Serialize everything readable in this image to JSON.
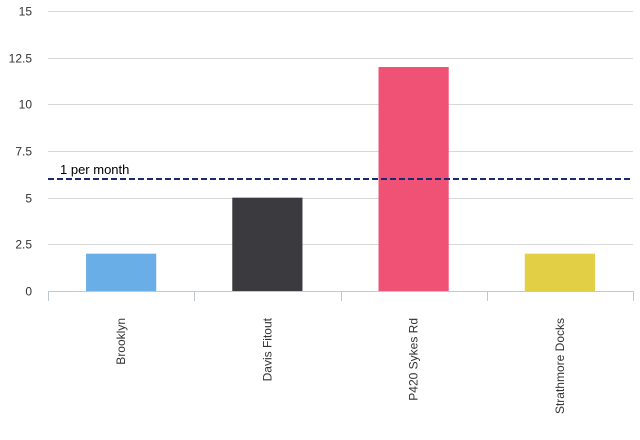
{
  "chart_data": {
    "type": "bar",
    "categories": [
      "Brooklyn",
      "Davis Fitout",
      "P420 Sykes Rd",
      "Strathmore Docks"
    ],
    "values": [
      2,
      5,
      12,
      2
    ],
    "bar_colors": [
      "#6aaee8",
      "#3b3b3f",
      "#ef5275",
      "#e2cf46"
    ],
    "ylim": [
      0,
      15
    ],
    "yticks": [
      0,
      2.5,
      5,
      7.5,
      10,
      12.5,
      15
    ],
    "ytick_labels": [
      "0",
      "2.5",
      "5",
      "7.5",
      "10",
      "12.5",
      "15"
    ],
    "grid": true,
    "reference_line": {
      "value": 6,
      "label": "1 per month",
      "color": "#1a2a6c",
      "style": "dashed"
    }
  }
}
